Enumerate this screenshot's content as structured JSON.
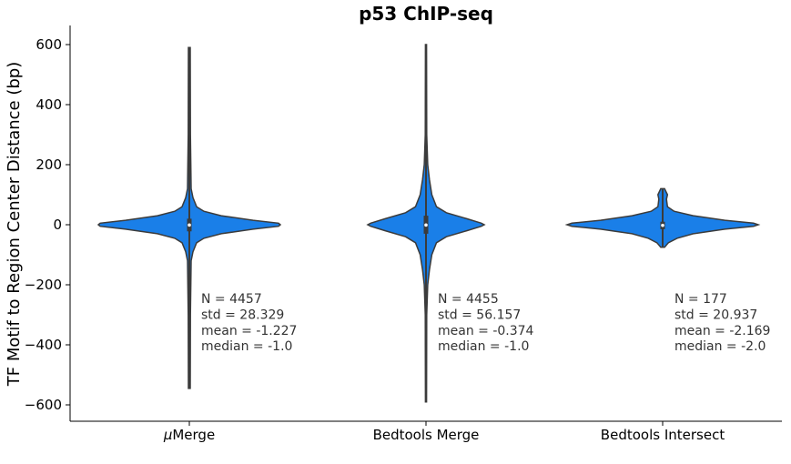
{
  "chart_data": {
    "type": "violin",
    "title": "p53 ChIP-seq",
    "ylabel": "TF Motif to Region Center Distance (bp)",
    "xlabel": "",
    "ylim": [
      -655,
      660
    ],
    "yticks": [
      600,
      400,
      200,
      0,
      -200,
      -400,
      -600
    ],
    "ytick_labels": [
      "600",
      "400",
      "200",
      "0",
      "−200",
      "−400",
      "−600"
    ],
    "grid": false,
    "color": "#1a7fe8",
    "edge_color": "#3b3b3b",
    "categories": [
      "μMerge",
      "Bedtools Merge",
      "Bedtools Intersect"
    ],
    "category_label_parts": [
      {
        "italic": "μ",
        "rest": "Merge"
      },
      {
        "italic": "",
        "rest": "Bedtools Merge"
      },
      {
        "italic": "",
        "rest": "Bedtools Intersect"
      }
    ],
    "violins": [
      {
        "category": "μMerge",
        "min": -545,
        "max": 590,
        "q1": -22,
        "median": -1.0,
        "q3": 20,
        "density": [
          [
            -545,
            0.01
          ],
          [
            -300,
            0.012
          ],
          [
            -120,
            0.02
          ],
          [
            -90,
            0.04
          ],
          [
            -60,
            0.08
          ],
          [
            -45,
            0.16
          ],
          [
            -30,
            0.35
          ],
          [
            -15,
            0.7
          ],
          [
            -5,
            0.98
          ],
          [
            0,
            1.0
          ],
          [
            5,
            0.98
          ],
          [
            15,
            0.7
          ],
          [
            30,
            0.35
          ],
          [
            45,
            0.16
          ],
          [
            60,
            0.08
          ],
          [
            90,
            0.04
          ],
          [
            120,
            0.02
          ],
          [
            300,
            0.012
          ],
          [
            590,
            0.01
          ]
        ]
      },
      {
        "category": "Bedtools Merge",
        "min": -590,
        "max": 600,
        "q1": -30,
        "median": -1.0,
        "q3": 30,
        "density": [
          [
            -590,
            0.01
          ],
          [
            -300,
            0.012
          ],
          [
            -200,
            0.03
          ],
          [
            -150,
            0.06
          ],
          [
            -100,
            0.1
          ],
          [
            -60,
            0.18
          ],
          [
            -40,
            0.35
          ],
          [
            -20,
            0.7
          ],
          [
            -5,
            0.95
          ],
          [
            0,
            1.0
          ],
          [
            5,
            0.95
          ],
          [
            20,
            0.7
          ],
          [
            40,
            0.35
          ],
          [
            60,
            0.18
          ],
          [
            100,
            0.1
          ],
          [
            150,
            0.06
          ],
          [
            200,
            0.03
          ],
          [
            300,
            0.012
          ],
          [
            600,
            0.01
          ]
        ]
      },
      {
        "category": "Bedtools Intersect",
        "min": -75,
        "max": 120,
        "q1": -15,
        "median": -2.0,
        "q3": 10,
        "density": [
          [
            -75,
            0.02
          ],
          [
            -60,
            0.06
          ],
          [
            -45,
            0.15
          ],
          [
            -30,
            0.32
          ],
          [
            -15,
            0.65
          ],
          [
            -5,
            0.95
          ],
          [
            0,
            1.0
          ],
          [
            5,
            0.95
          ],
          [
            15,
            0.65
          ],
          [
            30,
            0.32
          ],
          [
            45,
            0.12
          ],
          [
            60,
            0.05
          ],
          [
            85,
            0.04
          ],
          [
            100,
            0.05
          ],
          [
            120,
            0.02
          ]
        ]
      }
    ],
    "annotations": [
      {
        "category": "μMerge",
        "lines": [
          "N = 4457",
          "std = 28.329",
          "mean = -1.227",
          "median = -1.0"
        ]
      },
      {
        "category": "Bedtools Merge",
        "lines": [
          "N = 4455",
          "std = 56.157",
          "mean = -0.374",
          "median = -1.0"
        ]
      },
      {
        "category": "Bedtools Intersect",
        "lines": [
          "N = 177",
          "std = 20.937",
          "mean = -2.169",
          "median = -2.0"
        ]
      }
    ]
  }
}
